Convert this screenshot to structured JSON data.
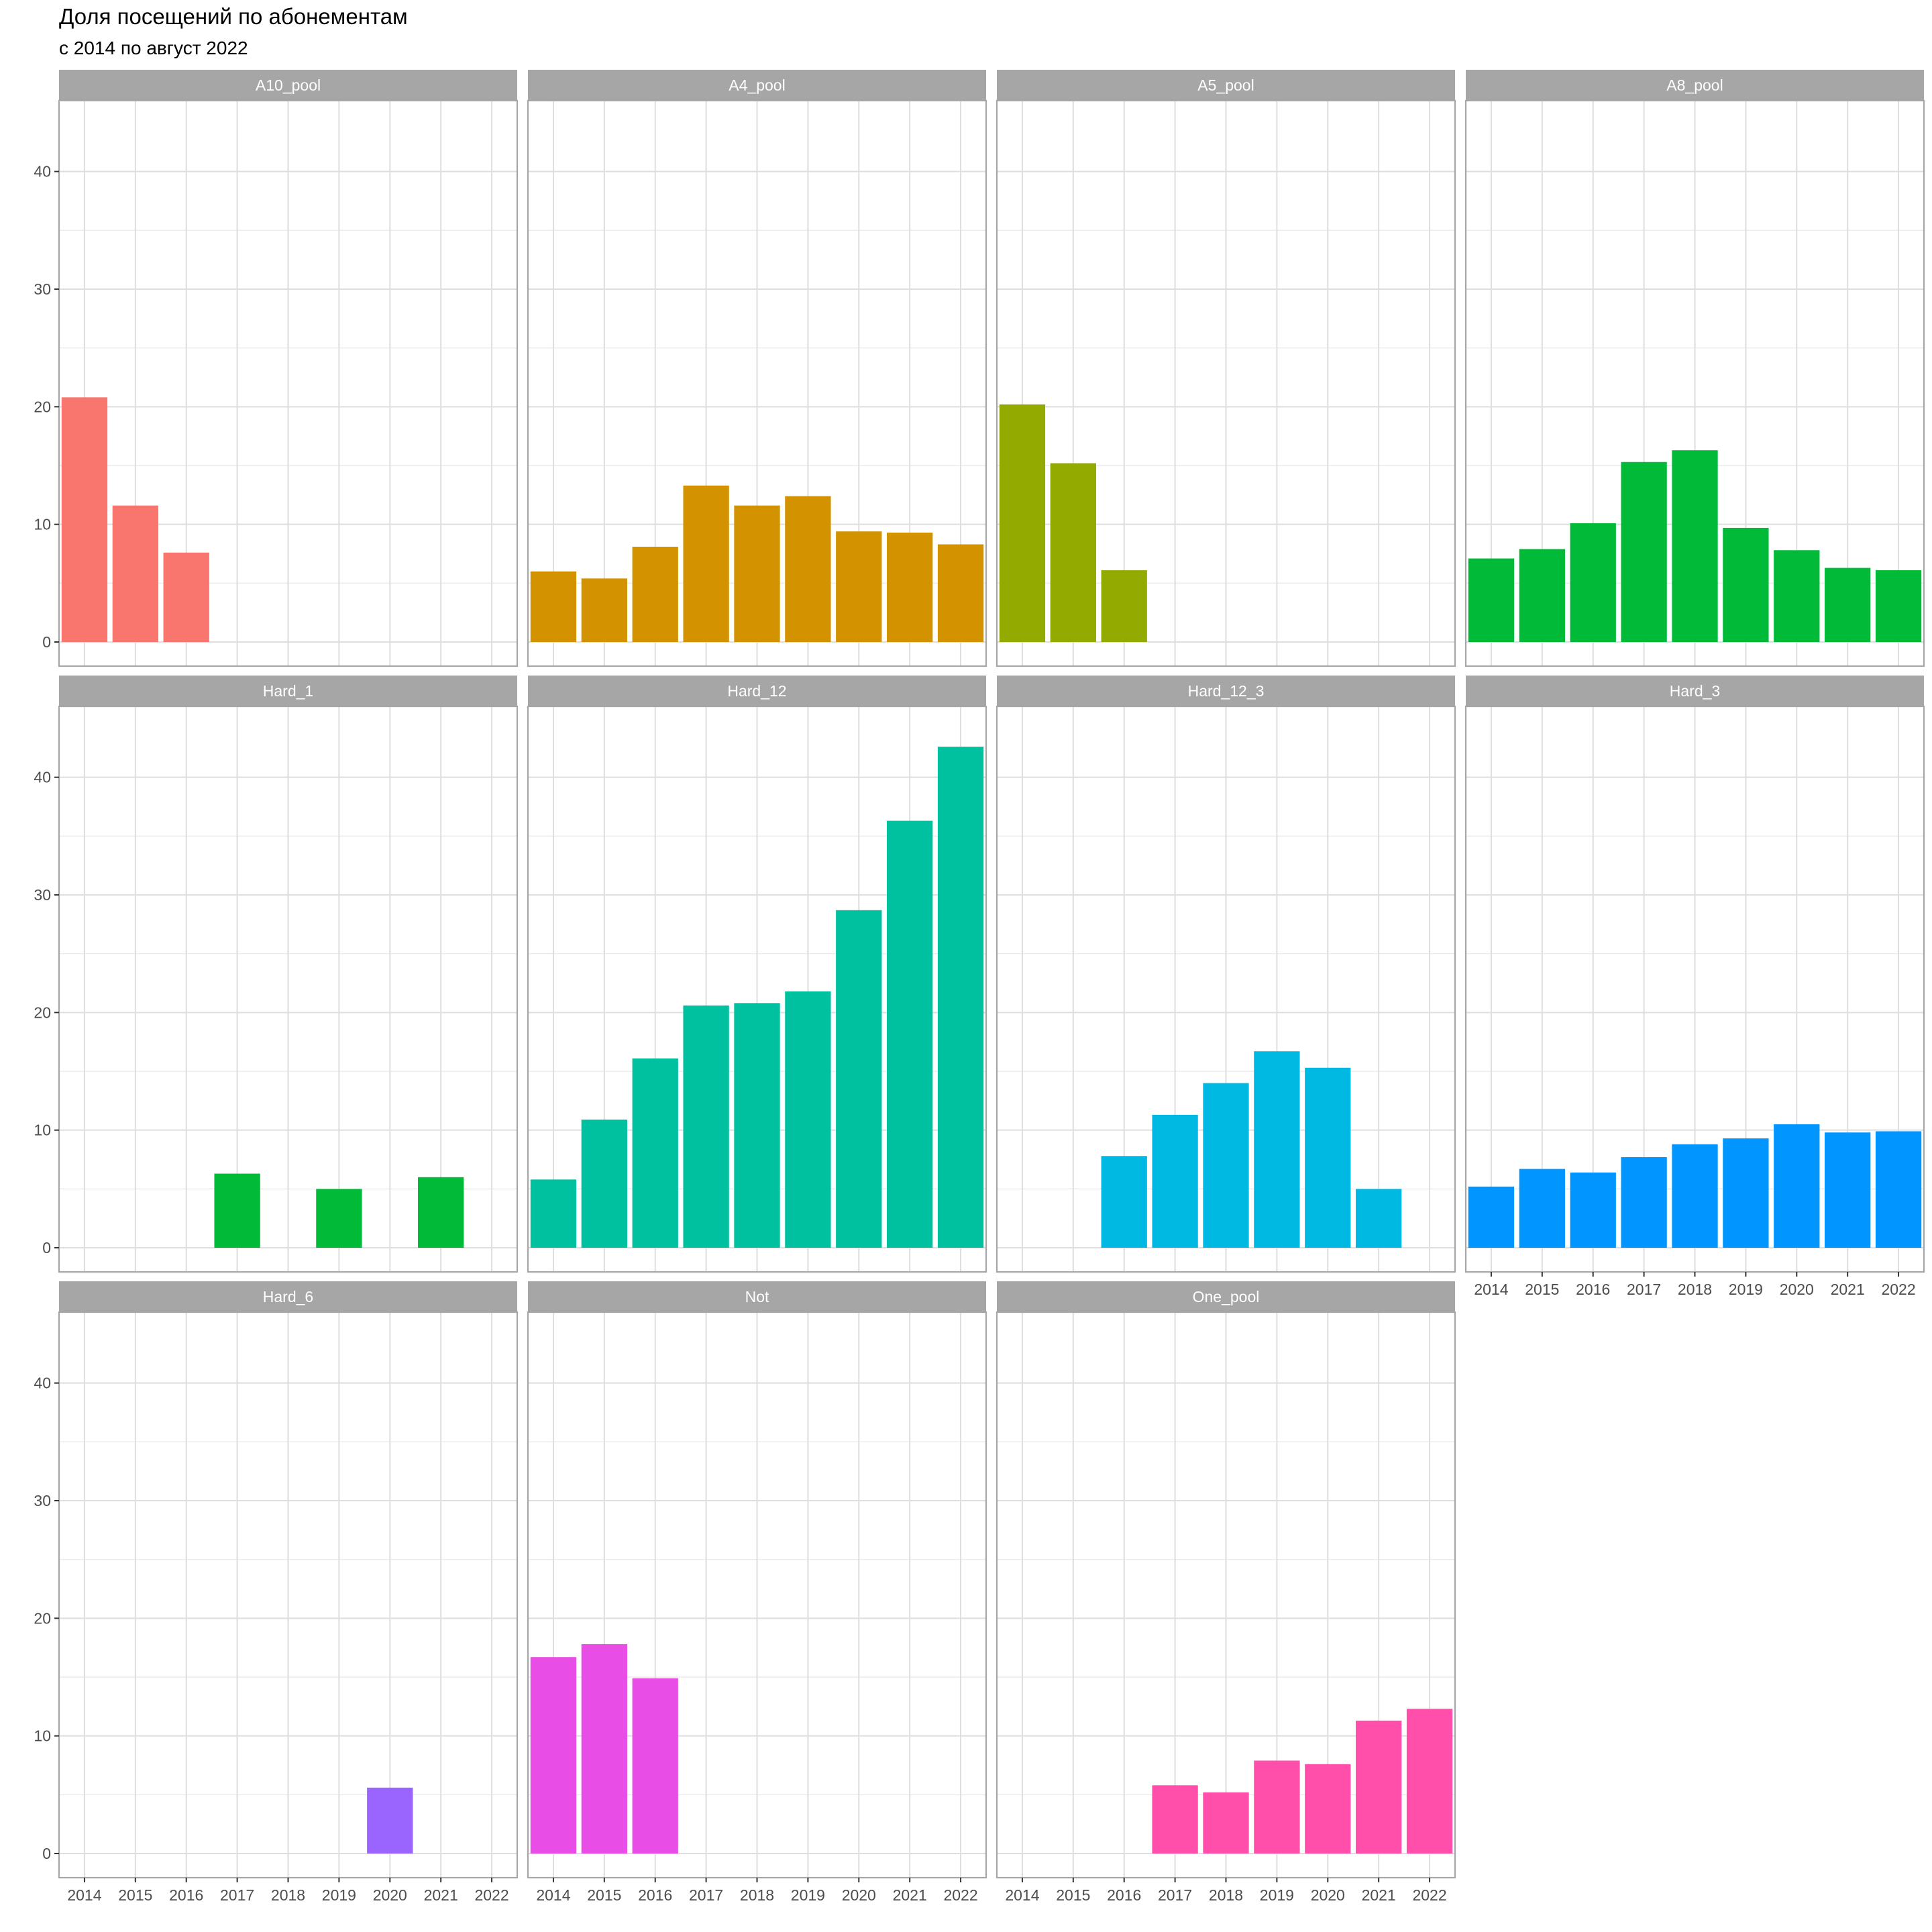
{
  "chart_data": {
    "type": "bar",
    "title": "Доля посещений по абонементам",
    "subtitle": "с 2014 по август 2022",
    "xlabel": "",
    "ylabel": "",
    "ylim": [
      0,
      45
    ],
    "y_ticks": [
      0,
      10,
      20,
      30,
      40
    ],
    "categories": [
      "2014",
      "2015",
      "2016",
      "2017",
      "2018",
      "2019",
      "2020",
      "2021",
      "2022"
    ],
    "grid": true,
    "legend": "none",
    "facets": [
      {
        "name": "A10_pool",
        "color": "#F8766D",
        "values": [
          20.8,
          11.6,
          7.6,
          null,
          null,
          null,
          null,
          null,
          null
        ]
      },
      {
        "name": "A4_pool",
        "color": "#D39200",
        "values": [
          6.0,
          5.4,
          8.1,
          13.3,
          11.6,
          12.4,
          9.4,
          9.3,
          8.3
        ]
      },
      {
        "name": "A5_pool",
        "color": "#93AA00",
        "values": [
          20.2,
          15.2,
          6.1,
          null,
          null,
          null,
          null,
          null,
          null
        ]
      },
      {
        "name": "A8_pool",
        "color": "#00BA38",
        "values": [
          7.1,
          7.9,
          10.1,
          15.3,
          16.3,
          9.7,
          7.8,
          6.3,
          6.1
        ]
      },
      {
        "name": "Hard_1",
        "color": "#00BA38",
        "values": [
          null,
          null,
          null,
          6.3,
          null,
          5.0,
          null,
          6.0,
          null
        ]
      },
      {
        "name": "Hard_12",
        "color": "#00C19F",
        "values": [
          5.8,
          10.9,
          16.1,
          20.6,
          20.8,
          21.8,
          28.7,
          36.3,
          42.6
        ]
      },
      {
        "name": "Hard_12_3",
        "color": "#00B9E3",
        "values": [
          null,
          null,
          7.8,
          11.3,
          14.0,
          16.7,
          15.3,
          5.0,
          null
        ]
      },
      {
        "name": "Hard_3",
        "color": "#0095FF",
        "values": [
          5.2,
          6.7,
          6.4,
          7.7,
          8.8,
          9.3,
          10.5,
          9.8,
          9.9
        ]
      },
      {
        "name": "Hard_6",
        "color": "#9A65FF",
        "values": [
          null,
          null,
          null,
          null,
          null,
          null,
          5.6,
          null,
          null
        ]
      },
      {
        "name": "Not",
        "color": "#E84DE6",
        "values": [
          16.7,
          17.8,
          14.9,
          null,
          null,
          null,
          null,
          null,
          null
        ]
      },
      {
        "name": "One_pool",
        "color": "#FF4FAA",
        "values": [
          null,
          null,
          null,
          5.8,
          5.2,
          7.9,
          7.6,
          11.3,
          12.3
        ]
      }
    ]
  }
}
